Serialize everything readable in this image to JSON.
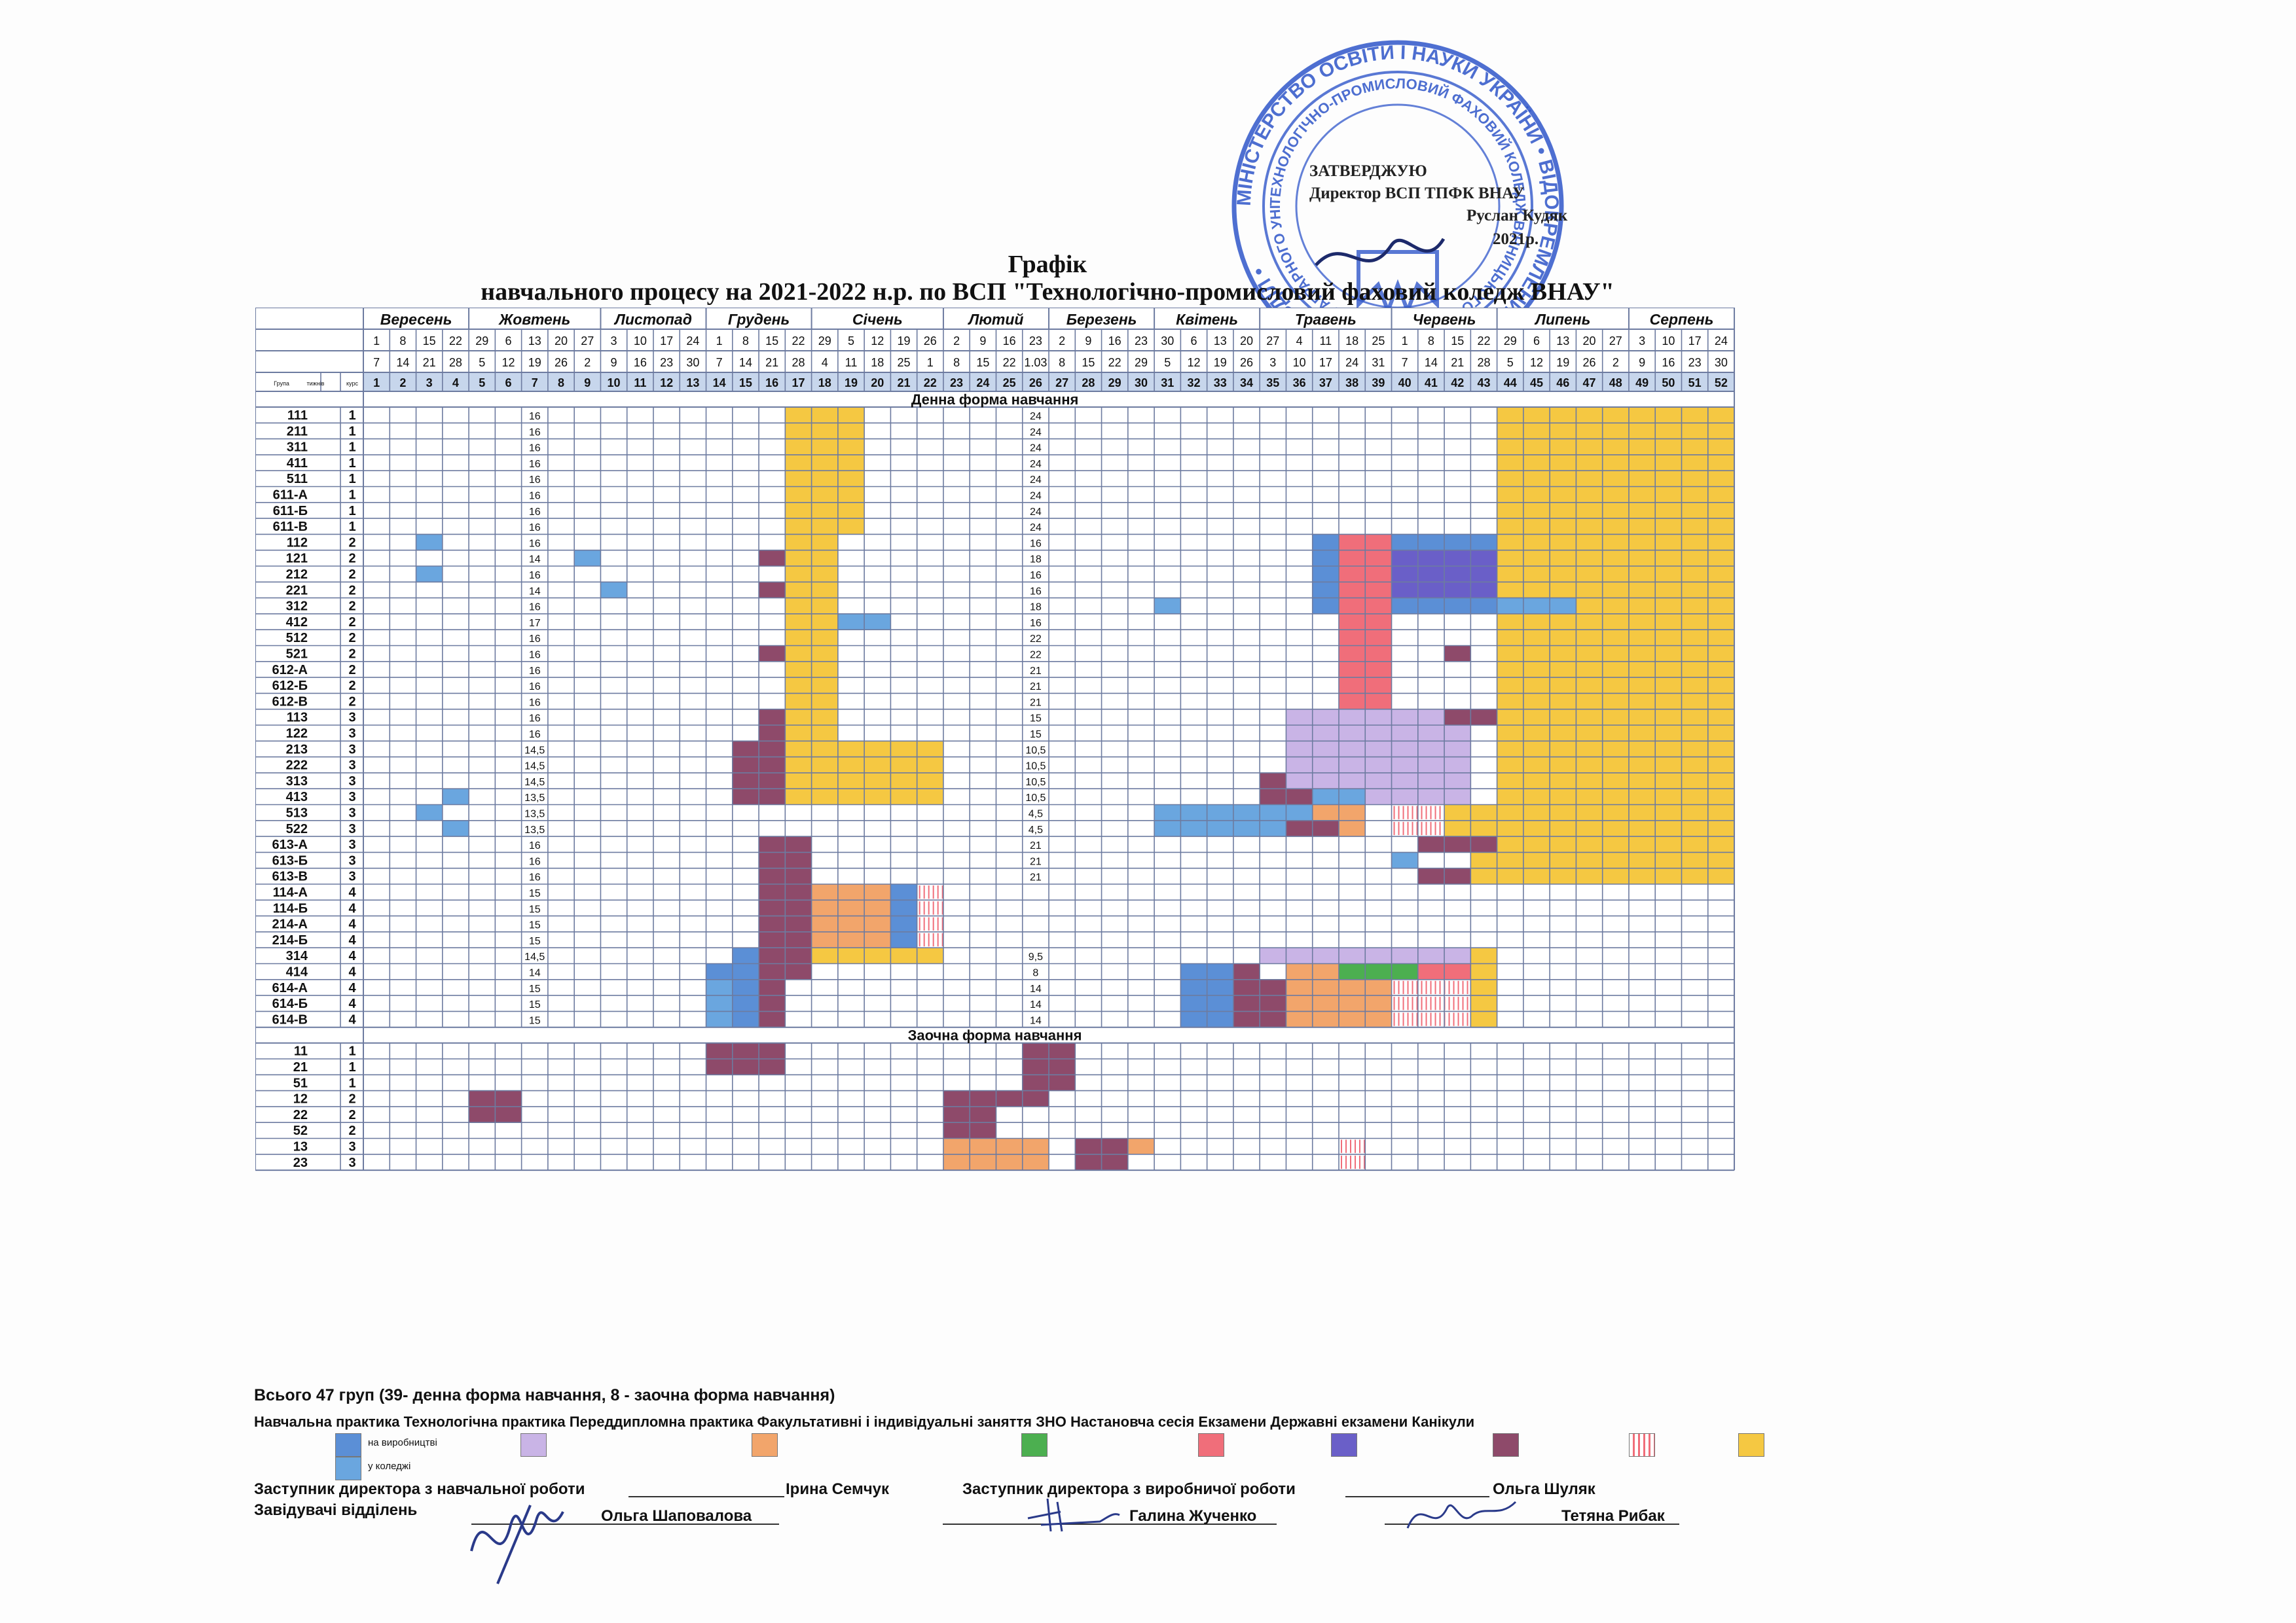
{
  "approval": {
    "l1": "ЗАТВЕРДЖУЮ",
    "l2": "Директор ВСП ТПФК ВНАУ",
    "l3": "Руслан Кудяк",
    "l4": "2021р."
  },
  "stamp": {
    "outer": "МІНІСТЕРСТВО ОСВІТИ І НАУКИ УКРАЇНИ • ВІДОКРЕМЛЕНИЙ СТРУКТУРНИЙ ПІДРОЗДІЛ •",
    "inner": "ТЕХНОЛОГІЧНО-ПРОМИСЛОВИЙ ФАХОВИЙ КОЛЕДЖ ВІННИЦЬКОГО НАЦІОНАЛЬНОГО АГРАРНОГО УНІВЕРСИТЕТУ"
  },
  "title": {
    "line1": "Графік",
    "line2": "навчального процесу  на 2021-2022 н.р. по ВСП \"Технологічно-промисловий фаховий коледж ВНАУ\""
  },
  "header": {
    "group_label": "Група",
    "weeks_label": "тижнів",
    "course_label": "курс",
    "months": [
      {
        "name": "Вересень",
        "span": 4
      },
      {
        "name": "Жовтень",
        "span": 5
      },
      {
        "name": "Листопад",
        "span": 4
      },
      {
        "name": "Грудень",
        "span": 4
      },
      {
        "name": "Січень",
        "span": 5
      },
      {
        "name": "Лютий",
        "span": 4
      },
      {
        "name": "Березень",
        "span": 4
      },
      {
        "name": "Квітень",
        "span": 4
      },
      {
        "name": "Травень",
        "span": 5
      },
      {
        "name": "Червень",
        "span": 4
      },
      {
        "name": "Липень",
        "span": 5
      },
      {
        "name": "Серпень",
        "span": 4
      }
    ],
    "date_from": [
      "1",
      "8",
      "15",
      "22",
      "29",
      "6",
      "13",
      "20",
      "27",
      "3",
      "10",
      "17",
      "24",
      "1",
      "8",
      "15",
      "22",
      "29",
      "5",
      "12",
      "19",
      "26",
      "2",
      "9",
      "16",
      "23",
      "2",
      "9",
      "16",
      "23",
      "30",
      "6",
      "13",
      "20",
      "27",
      "4",
      "11",
      "18",
      "25",
      "1",
      "8",
      "15",
      "22",
      "29",
      "6",
      "13",
      "20",
      "27",
      "3",
      "10",
      "17",
      "24"
    ],
    "date_to": [
      "7",
      "14",
      "21",
      "28",
      "5",
      "12",
      "19",
      "26",
      "2",
      "9",
      "16",
      "23",
      "30",
      "7",
      "14",
      "21",
      "28",
      "4",
      "11",
      "18",
      "25",
      "1",
      "8",
      "15",
      "22",
      "1.03",
      "8",
      "15",
      "22",
      "29",
      "5",
      "12",
      "19",
      "26",
      "3",
      "10",
      "17",
      "24",
      "31",
      "7",
      "14",
      "21",
      "28",
      "5",
      "12",
      "19",
      "26",
      "2",
      "9",
      "16",
      "23",
      "30"
    ]
  },
  "sections": {
    "day": "Денна форма навчання",
    "extramural": "Заочна форма навчання"
  },
  "day_groups": [
    {
      "g": "111",
      "c": "1",
      "s1": "16",
      "s2": "24"
    },
    {
      "g": "211",
      "c": "1",
      "s1": "16",
      "s2": "24"
    },
    {
      "g": "311",
      "c": "1",
      "s1": "16",
      "s2": "24"
    },
    {
      "g": "411",
      "c": "1",
      "s1": "16",
      "s2": "24"
    },
    {
      "g": "511",
      "c": "1",
      "s1": "16",
      "s2": "24"
    },
    {
      "g": "611-А",
      "c": "1",
      "s1": "16",
      "s2": "24"
    },
    {
      "g": "611-Б",
      "c": "1",
      "s1": "16",
      "s2": "24"
    },
    {
      "g": "611-В",
      "c": "1",
      "s1": "16",
      "s2": "24"
    },
    {
      "g": "112",
      "c": "2",
      "s1": "16",
      "s2": "16"
    },
    {
      "g": "121",
      "c": "2",
      "s1": "14",
      "s2": "18"
    },
    {
      "g": "212",
      "c": "2",
      "s1": "16",
      "s2": "16"
    },
    {
      "g": "221",
      "c": "2",
      "s1": "14",
      "s2": "16"
    },
    {
      "g": "312",
      "c": "2",
      "s1": "16",
      "s2": "18"
    },
    {
      "g": "412",
      "c": "2",
      "s1": "17",
      "s2": "16"
    },
    {
      "g": "512",
      "c": "2",
      "s1": "16",
      "s2": "22"
    },
    {
      "g": "521",
      "c": "2",
      "s1": "16",
      "s2": "22"
    },
    {
      "g": "612-А",
      "c": "2",
      "s1": "16",
      "s2": "21"
    },
    {
      "g": "612-Б",
      "c": "2",
      "s1": "16",
      "s2": "21"
    },
    {
      "g": "612-В",
      "c": "2",
      "s1": "16",
      "s2": "21"
    },
    {
      "g": "113",
      "c": "3",
      "s1": "16",
      "s2": "15"
    },
    {
      "g": "122",
      "c": "3",
      "s1": "16",
      "s2": "15"
    },
    {
      "g": "213",
      "c": "3",
      "s1": "14,5",
      "s2": "10,5"
    },
    {
      "g": "222",
      "c": "3",
      "s1": "14,5",
      "s2": "10,5"
    },
    {
      "g": "313",
      "c": "3",
      "s1": "14,5",
      "s2": "10,5"
    },
    {
      "g": "413",
      "c": "3",
      "s1": "13,5",
      "s2": "10,5"
    },
    {
      "g": "513",
      "c": "3",
      "s1": "13,5",
      "s2": "4,5"
    },
    {
      "g": "522",
      "c": "3",
      "s1": "13,5",
      "s2": "4,5"
    },
    {
      "g": "613-А",
      "c": "3",
      "s1": "16",
      "s2": "21"
    },
    {
      "g": "613-Б",
      "c": "3",
      "s1": "16",
      "s2": "21"
    },
    {
      "g": "613-В",
      "c": "3",
      "s1": "16",
      "s2": "21"
    },
    {
      "g": "114-А",
      "c": "4",
      "s1": "15",
      "s2": ""
    },
    {
      "g": "114-Б",
      "c": "4",
      "s1": "15",
      "s2": ""
    },
    {
      "g": "214-А",
      "c": "4",
      "s1": "15",
      "s2": ""
    },
    {
      "g": "214-Б",
      "c": "4",
      "s1": "15",
      "s2": ""
    },
    {
      "g": "314",
      "c": "4",
      "s1": "14,5",
      "s2": "9,5"
    },
    {
      "g": "414",
      "c": "4",
      "s1": "14",
      "s2": "8"
    },
    {
      "g": "614-А",
      "c": "4",
      "s1": "15",
      "s2": "14"
    },
    {
      "g": "614-Б",
      "c": "4",
      "s1": "15",
      "s2": "14"
    },
    {
      "g": "614-В",
      "c": "4",
      "s1": "15",
      "s2": "14"
    }
  ],
  "ext_groups": [
    {
      "g": "11",
      "c": "1"
    },
    {
      "g": "21",
      "c": "1"
    },
    {
      "g": "51",
      "c": "1"
    },
    {
      "g": "12",
      "c": "2"
    },
    {
      "g": "22",
      "c": "2"
    },
    {
      "g": "52",
      "c": "2"
    },
    {
      "g": "13",
      "c": "3"
    },
    {
      "g": "23",
      "c": "3"
    }
  ],
  "total": "Всього 47 груп (39- денна форма навчання, 8 - заочна форма навчання)",
  "legend": {
    "line": "Навчальна практика Технологічна практика Переддипломна практика Факультативні і індивідуальні заняття  ЗНО    Настановча сесія    Екзамени Державні екзамени Канікули",
    "sub1": "на виробництві",
    "sub2": "у коледжі"
  },
  "signatures": {
    "dep1": "Заступник директора з навчальної роботи",
    "dep1_name": "Ірина Семчук",
    "dep2": "Заступник директора з виробничої роботи",
    "dep2_name": "Ольга Шуляк",
    "heads": "Завідувачі відділень",
    "head1": "Ольга Шаповалова",
    "head2": "Галина Жученко",
    "head3": "Тетяна Рибак"
  },
  "colors": {
    "vacation": "#f5c842",
    "exam": "#8e4a6a",
    "practice_field": "#5b8fd6",
    "practice_college": "#6aa6df",
    "tech_practice": "#c9b4e6",
    "prediploma": "#f2a56b",
    "zno": "#4caf50",
    "session": "#f06e7a",
    "state_exam": "#6a5fc8",
    "electives": "#2e7d32",
    "line": "#6d7ba0"
  }
}
